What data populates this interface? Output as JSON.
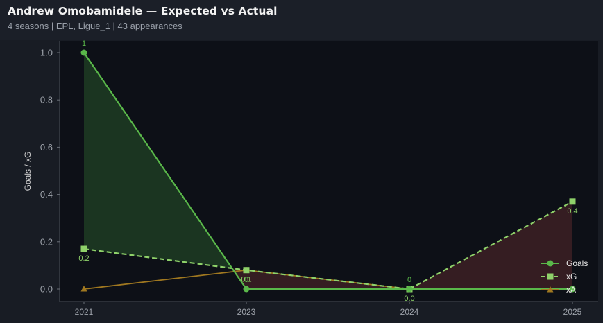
{
  "header": {
    "title": "Andrew Omobamidele — Expected vs Actual",
    "subtitle": "4 seasons | EPL, Ligue_1 | 43 appearances"
  },
  "colors": {
    "goals": "#5ab84a",
    "xg": "#8fd26a",
    "xa": "#a07820",
    "fill_over": "#1d3a22",
    "fill_under": "#3a1f24",
    "plot_bg": "#0d1017"
  },
  "chart_data": {
    "type": "line",
    "x": [
      "2021",
      "2023",
      "2024",
      "2025"
    ],
    "ylabel": "Goals / xG",
    "xlabel": "",
    "ylim": [
      -0.05,
      1.05
    ],
    "yticks": [
      "0.0",
      "0.2",
      "0.4",
      "0.6",
      "0.8",
      "1.0"
    ],
    "legend_position": "bottom-right",
    "series": [
      {
        "name": "Goals",
        "values": [
          1,
          0,
          0,
          0
        ],
        "labels": [
          "1",
          "0",
          "0",
          ""
        ],
        "style": "solid",
        "marker": "circle"
      },
      {
        "name": "xG",
        "values": [
          0.17,
          0.08,
          0.0,
          0.37
        ],
        "labels": [
          "0.2",
          "0.1",
          "0.0",
          "0.4"
        ],
        "style": "dashed",
        "marker": "square"
      },
      {
        "name": "xA",
        "values": [
          0.0,
          0.08,
          0.0,
          0.0
        ],
        "style": "solid",
        "marker": "triangle"
      }
    ]
  }
}
